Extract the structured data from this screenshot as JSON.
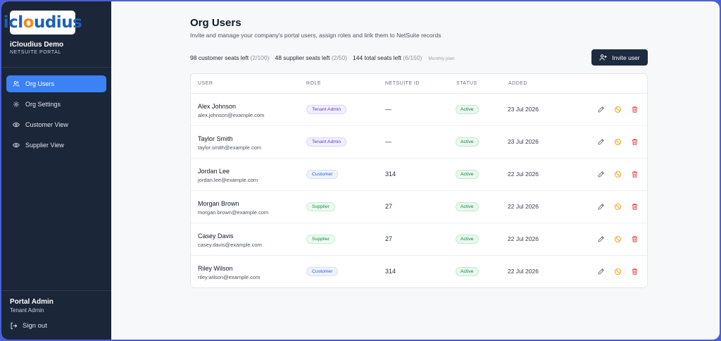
{
  "sidebar": {
    "logo_text_part1": "icl",
    "logo_text_o": "o",
    "logo_text_part2": "udius",
    "org_name": "iCloudius Demo",
    "org_sub": "NETSUITE PORTAL",
    "nav": [
      {
        "label": "Org Users",
        "icon": "users-icon",
        "active": true
      },
      {
        "label": "Org Settings",
        "icon": "gear-icon",
        "active": false
      },
      {
        "label": "Customer View",
        "icon": "eye-icon",
        "active": false
      },
      {
        "label": "Supplier View",
        "icon": "eye-icon",
        "active": false
      }
    ],
    "admin_name": "Portal Admin",
    "admin_role": "Tenant Admin",
    "signout_label": "Sign out"
  },
  "header": {
    "title": "Org Users",
    "description": "Invite and manage your company's portal users, assign roles and link them to NetSuite records",
    "seats": {
      "customer": "98 customer seats left",
      "customer_detail": "(2/100)",
      "supplier": "48 supplier seats left",
      "supplier_detail": "(2/50)",
      "total": "144 total seats left",
      "total_detail": "(6/150)",
      "plan": "Monthly plan"
    },
    "invite_label": "Invite user"
  },
  "table": {
    "columns": [
      "USER",
      "ROLE",
      "NETSUITE ID",
      "STATUS",
      "ADDED"
    ],
    "rows": [
      {
        "name": "Alex Johnson",
        "email": "alex.johnson@example.com",
        "role": "Tenant Admin",
        "role_type": "tenant",
        "netsuite_id": "—",
        "status": "Active",
        "added": "23 Jul 2026"
      },
      {
        "name": "Taylor Smith",
        "email": "taylor.smith@example.com",
        "role": "Tenant Admin",
        "role_type": "tenant",
        "netsuite_id": "—",
        "status": "Active",
        "added": "23 Jul 2026"
      },
      {
        "name": "Jordan Lee",
        "email": "jordan.lee@example.com",
        "role": "Customer",
        "role_type": "customer",
        "netsuite_id": "314",
        "status": "Active",
        "added": "22 Jul 2026"
      },
      {
        "name": "Morgan Brown",
        "email": "morgan.brown@example.com",
        "role": "Supplier",
        "role_type": "supplier",
        "netsuite_id": "27",
        "status": "Active",
        "added": "22 Jul 2026"
      },
      {
        "name": "Casey Davis",
        "email": "casey.davis@example.com",
        "role": "Supplier",
        "role_type": "supplier",
        "netsuite_id": "27",
        "status": "Active",
        "added": "22 Jul 2026"
      },
      {
        "name": "Riley Wilson",
        "email": "riley.wilson@example.com",
        "role": "Customer",
        "role_type": "customer",
        "netsuite_id": "314",
        "status": "Active",
        "added": "22 Jul 2026"
      }
    ]
  },
  "colors": {
    "sidebar_bg": "#1b2638",
    "accent": "#3b82f6",
    "button_dark": "#1e2a3f",
    "edit_icon": "#6b7280",
    "disable_icon": "#f59e0b",
    "delete_icon": "#ef4444"
  }
}
